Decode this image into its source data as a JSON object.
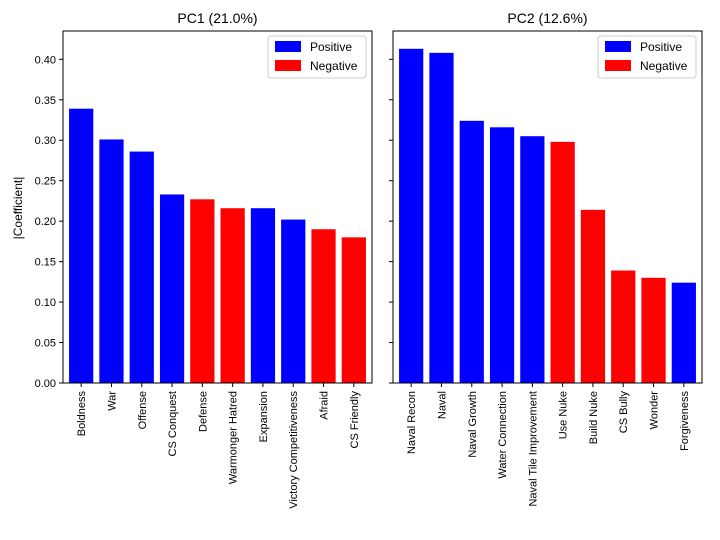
{
  "colors": {
    "positive": "#0000ff",
    "negative": "#ff0000"
  },
  "legend": {
    "positive_label": "Positive",
    "negative_label": "Negative",
    "placement": "upper right"
  },
  "ylabel": "|Coefficient|",
  "yticks": [
    "0.00",
    "0.05",
    "0.10",
    "0.15",
    "0.20",
    "0.25",
    "0.30",
    "0.35",
    "0.40"
  ],
  "chart_data": [
    {
      "type": "bar",
      "title": "PC1 (21.0%)",
      "ylabel": "|Coefficient|",
      "ylim": [
        0,
        0.435
      ],
      "grid": false,
      "legend": "top-right",
      "categories": [
        "Boldness",
        "War",
        "Offense",
        "CS Conquest",
        "Defense",
        "Warmonger Hatred",
        "Expansion",
        "Victory Competitiveness",
        "Afraid",
        "CS Friendly"
      ],
      "values": [
        0.339,
        0.301,
        0.286,
        0.233,
        0.227,
        0.216,
        0.216,
        0.202,
        0.19,
        0.18
      ],
      "signs": [
        "Positive",
        "Positive",
        "Positive",
        "Positive",
        "Negative",
        "Negative",
        "Positive",
        "Positive",
        "Negative",
        "Negative"
      ]
    },
    {
      "type": "bar",
      "title": "PC2 (12.6%)",
      "ylabel": "",
      "ylim": [
        0,
        0.435
      ],
      "grid": false,
      "legend": "top-right",
      "categories": [
        "Naval Recon",
        "Naval",
        "Naval Growth",
        "Water Connection",
        "Naval Tile Improvement",
        "Use Nuke",
        "Build Nuke",
        "CS Bully",
        "Wonder",
        "Forgiveness"
      ],
      "values": [
        0.413,
        0.408,
        0.324,
        0.316,
        0.305,
        0.298,
        0.214,
        0.139,
        0.13,
        0.124
      ],
      "signs": [
        "Positive",
        "Positive",
        "Positive",
        "Positive",
        "Positive",
        "Negative",
        "Negative",
        "Negative",
        "Negative",
        "Positive"
      ]
    }
  ]
}
